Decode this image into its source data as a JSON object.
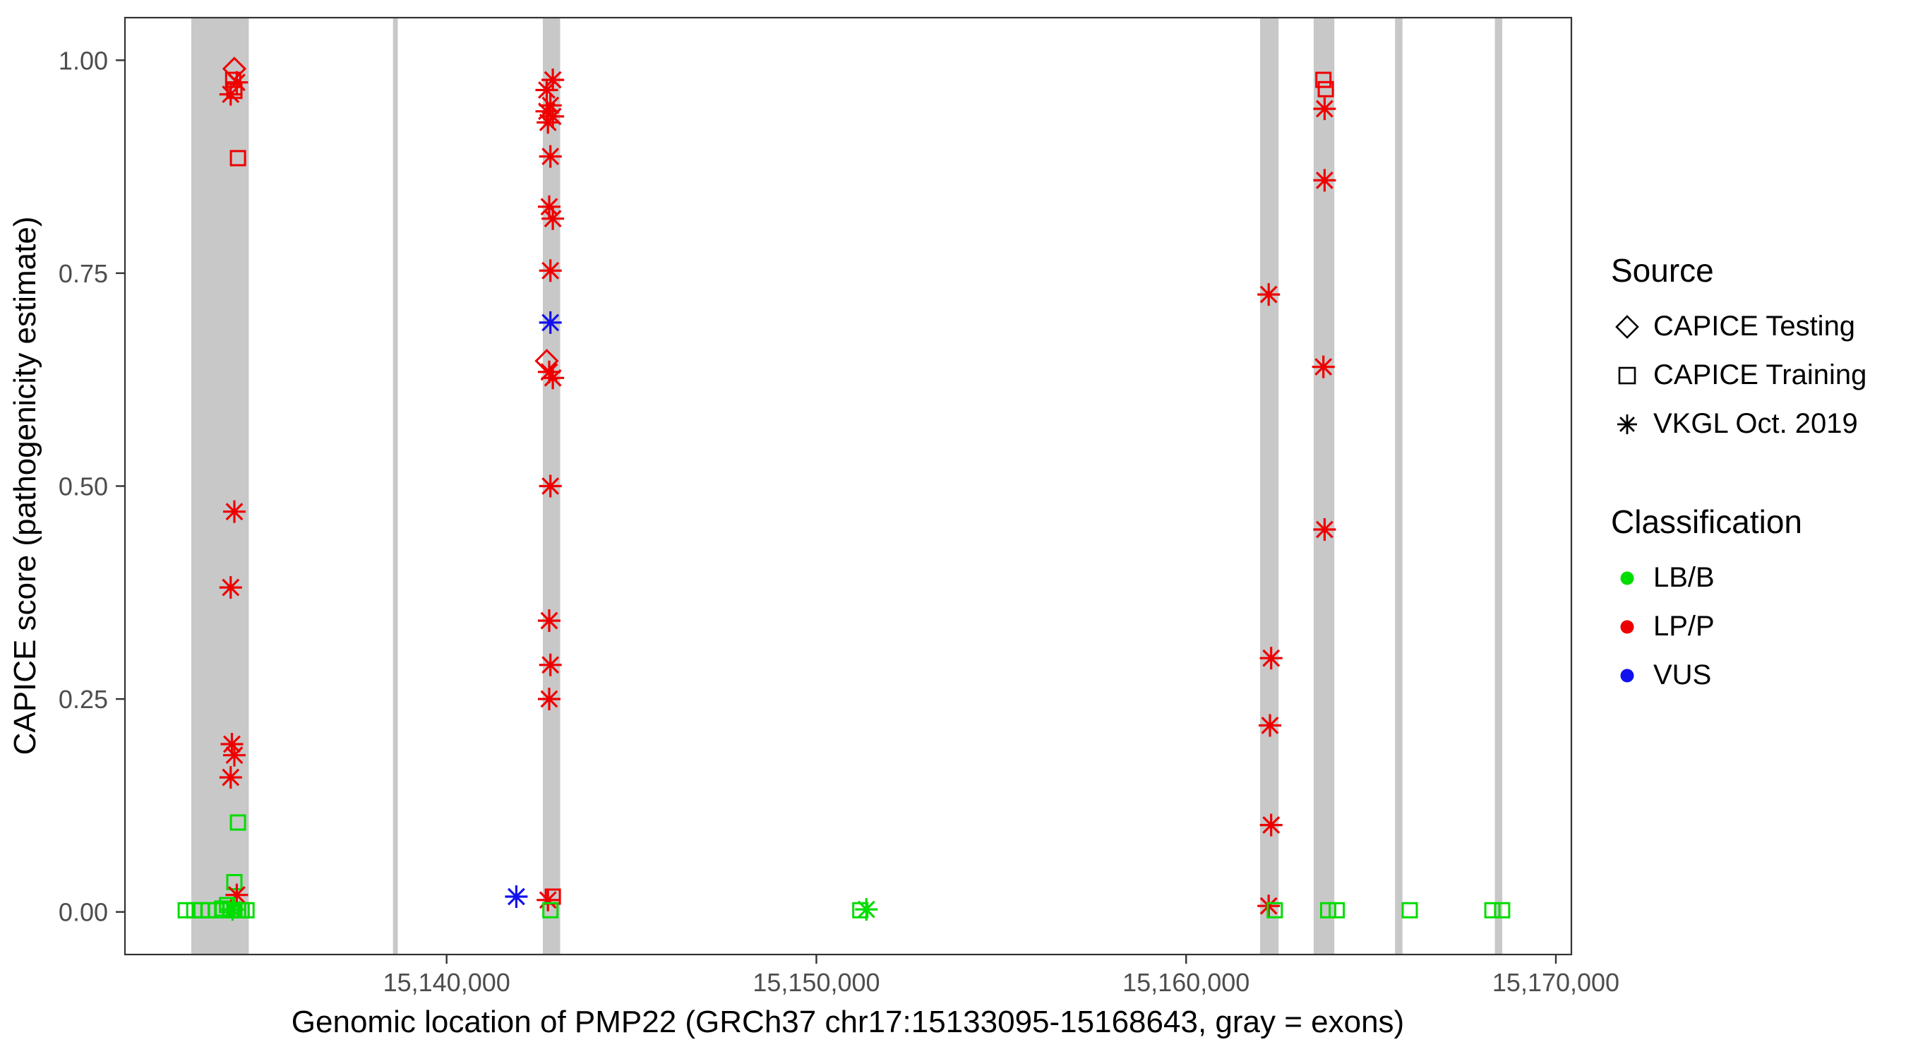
{
  "chart_data": {
    "type": "scatter",
    "title": "",
    "xlabel": "Genomic location of PMP22 (GRCh37 chr17:15133095-15168643, gray = exons)",
    "ylabel": "CAPICE score (pathogenicity estimate)",
    "xlim": [
      15131300,
      15170420
    ],
    "ylim": [
      -0.05,
      1.05
    ],
    "grid": false,
    "x_ticks": [
      {
        "value": 15140000,
        "label": "15,140,000"
      },
      {
        "value": 15150000,
        "label": "15,150,000"
      },
      {
        "value": 15160000,
        "label": "15,160,000"
      },
      {
        "value": 15170000,
        "label": "15,170,000"
      }
    ],
    "y_ticks": [
      {
        "value": 0.0,
        "label": "0.00"
      },
      {
        "value": 0.25,
        "label": "0.25"
      },
      {
        "value": 0.5,
        "label": "0.50"
      },
      {
        "value": 0.75,
        "label": "0.75"
      },
      {
        "value": 1.0,
        "label": "1.00"
      }
    ],
    "exon_regions": [
      [
        15133095,
        15134650
      ],
      [
        15138550,
        15138680
      ],
      [
        15142600,
        15143070
      ],
      [
        15162000,
        15162500
      ],
      [
        15163450,
        15164010
      ],
      [
        15165650,
        15165850
      ],
      [
        15168350,
        15168550
      ]
    ],
    "points": [
      {
        "x": 15134259,
        "y": 0.99,
        "classification": "LP/P",
        "source": "CAPICE Testing"
      },
      {
        "x": 15134226,
        "y": 0.977,
        "classification": "LP/P",
        "source": "CAPICE Training"
      },
      {
        "x": 15134325,
        "y": 0.974,
        "classification": "LP/P",
        "source": "VKGL Oct. 2019"
      },
      {
        "x": 15134259,
        "y": 0.964,
        "classification": "LP/P",
        "source": "CAPICE Training"
      },
      {
        "x": 15134160,
        "y": 0.96,
        "classification": "LP/P",
        "source": "VKGL Oct. 2019"
      },
      {
        "x": 15134357,
        "y": 0.885,
        "classification": "LP/P",
        "source": "CAPICE Training"
      },
      {
        "x": 15134259,
        "y": 0.47,
        "classification": "LP/P",
        "source": "VKGL Oct. 2019"
      },
      {
        "x": 15134160,
        "y": 0.381,
        "classification": "LP/P",
        "source": "VKGL Oct. 2019"
      },
      {
        "x": 15134193,
        "y": 0.197,
        "classification": "LP/P",
        "source": "VKGL Oct. 2019"
      },
      {
        "x": 15134259,
        "y": 0.184,
        "classification": "LP/P",
        "source": "VKGL Oct. 2019"
      },
      {
        "x": 15134160,
        "y": 0.158,
        "classification": "LP/P",
        "source": "VKGL Oct. 2019"
      },
      {
        "x": 15134357,
        "y": 0.105,
        "classification": "LB/B",
        "source": "CAPICE Training"
      },
      {
        "x": 15134259,
        "y": 0.035,
        "classification": "LB/B",
        "source": "CAPICE Training"
      },
      {
        "x": 15134325,
        "y": 0.02,
        "classification": "LP/P",
        "source": "VKGL Oct. 2019"
      },
      {
        "x": 15132944,
        "y": 0.002,
        "classification": "LB/B",
        "source": "CAPICE Training"
      },
      {
        "x": 15133174,
        "y": 0.002,
        "classification": "LB/B",
        "source": "CAPICE Training"
      },
      {
        "x": 15133371,
        "y": 0.002,
        "classification": "LB/B",
        "source": "CAPICE Training"
      },
      {
        "x": 15133568,
        "y": 0.002,
        "classification": "LB/B",
        "source": "CAPICE Training"
      },
      {
        "x": 15133766,
        "y": 0.002,
        "classification": "LB/B",
        "source": "CAPICE Training"
      },
      {
        "x": 15133930,
        "y": 0.004,
        "classification": "LB/B",
        "source": "CAPICE Training"
      },
      {
        "x": 15134062,
        "y": 0.008,
        "classification": "LB/B",
        "source": "CAPICE Training"
      },
      {
        "x": 15134160,
        "y": 0.002,
        "classification": "LB/B",
        "source": "CAPICE Training"
      },
      {
        "x": 15134210,
        "y": 0.003,
        "classification": "LB/B",
        "source": "VKGL Oct. 2019"
      },
      {
        "x": 15134259,
        "y": 0.002,
        "classification": "LB/B",
        "source": "CAPICE Training"
      },
      {
        "x": 15134358,
        "y": 0.002,
        "classification": "LB/B",
        "source": "CAPICE Training"
      },
      {
        "x": 15134456,
        "y": 0.002,
        "classification": "LB/B",
        "source": "CAPICE Training"
      },
      {
        "x": 15134588,
        "y": 0.002,
        "classification": "LB/B",
        "source": "CAPICE Training"
      },
      {
        "x": 15142872,
        "y": 0.977,
        "classification": "LP/P",
        "source": "VKGL Oct. 2019"
      },
      {
        "x": 15142708,
        "y": 0.965,
        "classification": "LP/P",
        "source": "VKGL Oct. 2019"
      },
      {
        "x": 15142807,
        "y": 0.947,
        "classification": "LP/P",
        "source": "VKGL Oct. 2019"
      },
      {
        "x": 15142708,
        "y": 0.94,
        "classification": "LP/P",
        "source": "VKGL Oct. 2019"
      },
      {
        "x": 15142872,
        "y": 0.934,
        "classification": "LP/P",
        "source": "VKGL Oct. 2019"
      },
      {
        "x": 15142741,
        "y": 0.927,
        "classification": "LP/P",
        "source": "VKGL Oct. 2019"
      },
      {
        "x": 15142807,
        "y": 0.887,
        "classification": "LP/P",
        "source": "VKGL Oct. 2019"
      },
      {
        "x": 15142774,
        "y": 0.828,
        "classification": "LP/P",
        "source": "VKGL Oct. 2019"
      },
      {
        "x": 15142872,
        "y": 0.814,
        "classification": "LP/P",
        "source": "VKGL Oct. 2019"
      },
      {
        "x": 15142807,
        "y": 0.753,
        "classification": "LP/P",
        "source": "VKGL Oct. 2019"
      },
      {
        "x": 15142807,
        "y": 0.692,
        "classification": "VUS",
        "source": "VKGL Oct. 2019"
      },
      {
        "x": 15142708,
        "y": 0.647,
        "classification": "LP/P",
        "source": "CAPICE Testing"
      },
      {
        "x": 15142774,
        "y": 0.634,
        "classification": "LP/P",
        "source": "VKGL Oct. 2019"
      },
      {
        "x": 15142872,
        "y": 0.627,
        "classification": "LP/P",
        "source": "VKGL Oct. 2019"
      },
      {
        "x": 15142807,
        "y": 0.5,
        "classification": "LP/P",
        "source": "VKGL Oct. 2019"
      },
      {
        "x": 15142774,
        "y": 0.342,
        "classification": "LP/P",
        "source": "VKGL Oct. 2019"
      },
      {
        "x": 15142807,
        "y": 0.29,
        "classification": "LP/P",
        "source": "VKGL Oct. 2019"
      },
      {
        "x": 15142774,
        "y": 0.25,
        "classification": "LP/P",
        "source": "VKGL Oct. 2019"
      },
      {
        "x": 15141885,
        "y": 0.018,
        "classification": "VUS",
        "source": "VKGL Oct. 2019"
      },
      {
        "x": 15142872,
        "y": 0.018,
        "classification": "LP/P",
        "source": "CAPICE Training"
      },
      {
        "x": 15142741,
        "y": 0.014,
        "classification": "LP/P",
        "source": "VKGL Oct. 2019"
      },
      {
        "x": 15142807,
        "y": 0.002,
        "classification": "LB/B",
        "source": "CAPICE Training"
      },
      {
        "x": 15151189,
        "y": 0.002,
        "classification": "LB/B",
        "source": "CAPICE Training"
      },
      {
        "x": 15151353,
        "y": 0.003,
        "classification": "LB/B",
        "source": "VKGL Oct. 2019"
      },
      {
        "x": 15162234,
        "y": 0.725,
        "classification": "LP/P",
        "source": "VKGL Oct. 2019"
      },
      {
        "x": 15162300,
        "y": 0.298,
        "classification": "LP/P",
        "source": "VKGL Oct. 2019"
      },
      {
        "x": 15162267,
        "y": 0.219,
        "classification": "LP/P",
        "source": "VKGL Oct. 2019"
      },
      {
        "x": 15162300,
        "y": 0.102,
        "classification": "LP/P",
        "source": "VKGL Oct. 2019"
      },
      {
        "x": 15162234,
        "y": 0.007,
        "classification": "LP/P",
        "source": "VKGL Oct. 2019"
      },
      {
        "x": 15162397,
        "y": 0.002,
        "classification": "LB/B",
        "source": "CAPICE Training"
      },
      {
        "x": 15163712,
        "y": 0.977,
        "classification": "LP/P",
        "source": "CAPICE Training"
      },
      {
        "x": 15163778,
        "y": 0.966,
        "classification": "LP/P",
        "source": "CAPICE Training"
      },
      {
        "x": 15163745,
        "y": 0.943,
        "classification": "LP/P",
        "source": "VKGL Oct. 2019"
      },
      {
        "x": 15163745,
        "y": 0.859,
        "classification": "LP/P",
        "source": "VKGL Oct. 2019"
      },
      {
        "x": 15163712,
        "y": 0.64,
        "classification": "LP/P",
        "source": "VKGL Oct. 2019"
      },
      {
        "x": 15163745,
        "y": 0.449,
        "classification": "LP/P",
        "source": "VKGL Oct. 2019"
      },
      {
        "x": 15163843,
        "y": 0.002,
        "classification": "LB/B",
        "source": "CAPICE Training"
      },
      {
        "x": 15164073,
        "y": 0.002,
        "classification": "LB/B",
        "source": "CAPICE Training"
      },
      {
        "x": 15166048,
        "y": 0.002,
        "classification": "LB/B",
        "source": "CAPICE Training"
      },
      {
        "x": 15168284,
        "y": 0.002,
        "classification": "LB/B",
        "source": "CAPICE Training"
      },
      {
        "x": 15168547,
        "y": 0.002,
        "classification": "LB/B",
        "source": "CAPICE Training"
      }
    ]
  },
  "legend": {
    "source": {
      "title": "Source",
      "items": [
        {
          "label": "CAPICE Testing",
          "shape": "diamond"
        },
        {
          "label": "CAPICE Training",
          "shape": "square"
        },
        {
          "label": "VKGL Oct. 2019",
          "shape": "asterisk"
        }
      ]
    },
    "classification": {
      "title": "Classification",
      "items": [
        {
          "label": "LB/B",
          "color": "#00DD00"
        },
        {
          "label": "LP/P",
          "color": "#EE0000"
        },
        {
          "label": "VUS",
          "color": "#1111EE"
        }
      ]
    }
  },
  "shape_by_source": {
    "CAPICE Testing": "diamond",
    "CAPICE Training": "square",
    "VKGL Oct. 2019": "asterisk"
  },
  "colors": {
    "LB/B": "#00DD00",
    "LP/P": "#EE0000",
    "VUS": "#1111EE",
    "exon": "#C8C8C8",
    "axis": "#333333",
    "tick_label": "#4D4D4D"
  }
}
